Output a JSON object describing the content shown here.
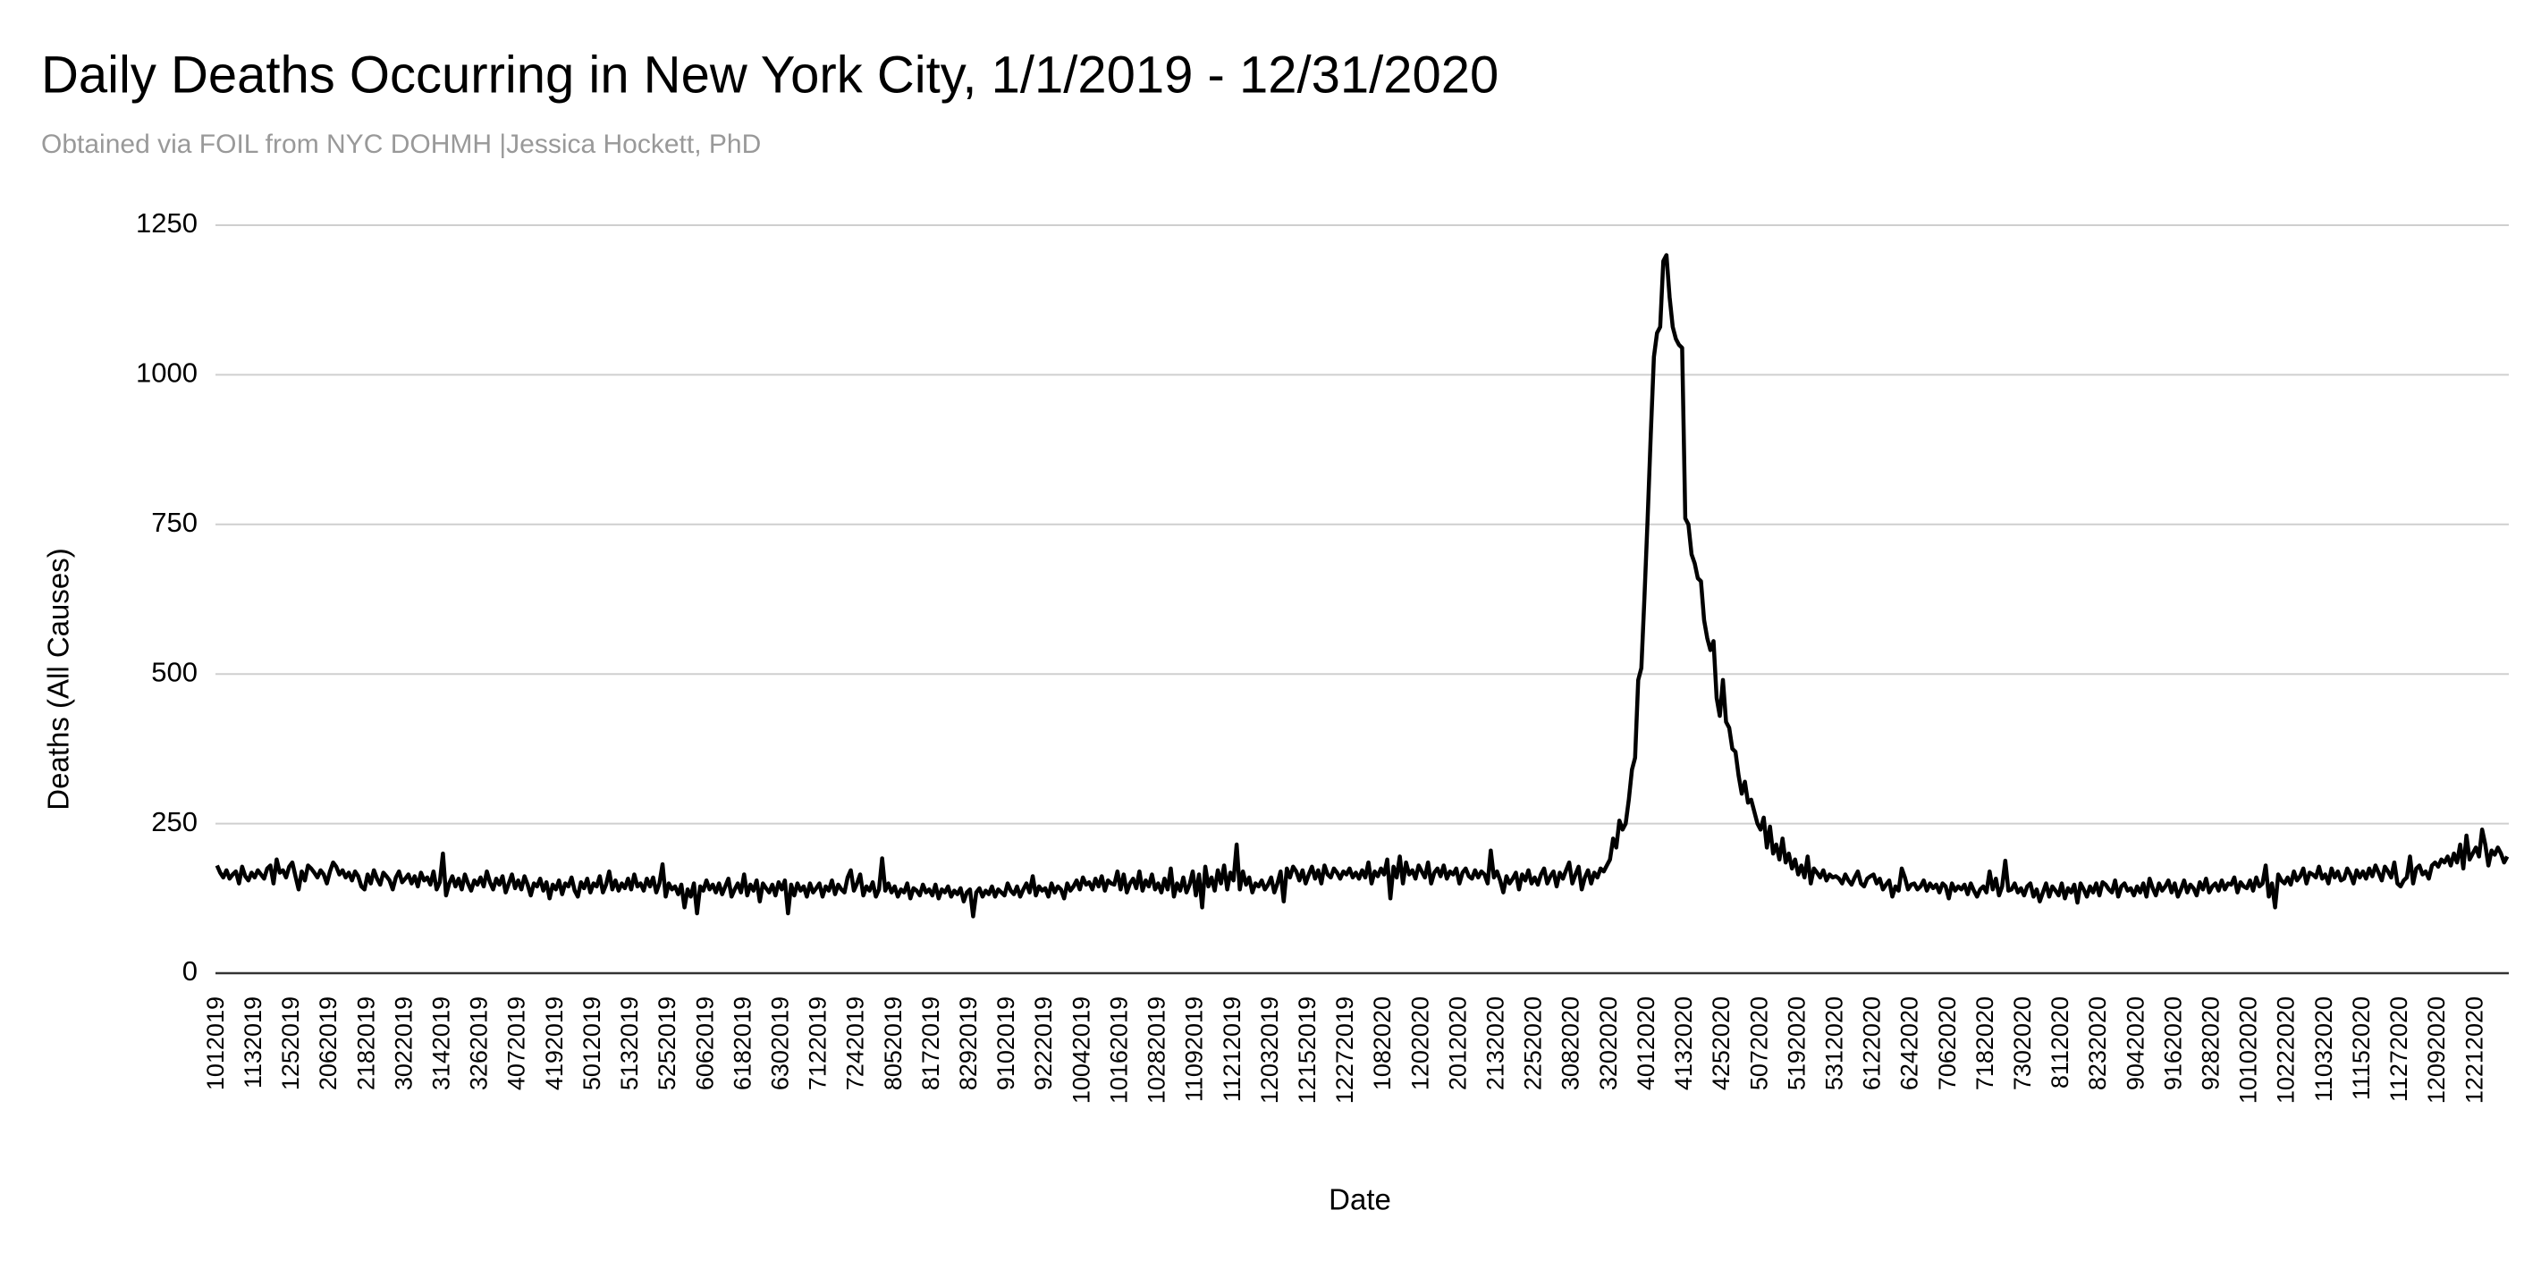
{
  "chart_data": {
    "type": "line",
    "title": "Daily Deaths Occurring in New York City, 1/1/2019 - 12/31/2020",
    "subtitle": "Obtained via FOIL from NYC DOHMH |Jessica Hockett, PhD",
    "x_label": "Date",
    "y_label": "Deaths (All Causes)",
    "color": "#000000",
    "grid": true,
    "ylim": [
      0,
      1250
    ],
    "yticks": [
      0,
      250,
      500,
      750,
      1000,
      1250
    ],
    "categories": [
      "1012019",
      null,
      null,
      null,
      null,
      null,
      null,
      null,
      null,
      null,
      null,
      null,
      "1132019",
      null,
      null,
      null,
      null,
      null,
      null,
      null,
      null,
      null,
      null,
      null,
      "1252019",
      null,
      null,
      null,
      null,
      null,
      null,
      null,
      null,
      null,
      null,
      null,
      "2062019",
      null,
      null,
      null,
      null,
      null,
      null,
      null,
      null,
      null,
      null,
      null,
      "2182019",
      null,
      null,
      null,
      null,
      null,
      null,
      null,
      null,
      null,
      null,
      null,
      "3022019",
      null,
      null,
      null,
      null,
      null,
      null,
      null,
      null,
      null,
      null,
      null,
      "3142019",
      null,
      null,
      null,
      null,
      null,
      null,
      null,
      null,
      null,
      null,
      null,
      "3262019",
      null,
      null,
      null,
      null,
      null,
      null,
      null,
      null,
      null,
      null,
      null,
      "4072019",
      null,
      null,
      null,
      null,
      null,
      null,
      null,
      null,
      null,
      null,
      null,
      "4192019",
      null,
      null,
      null,
      null,
      null,
      null,
      null,
      null,
      null,
      null,
      null,
      "5012019",
      null,
      null,
      null,
      null,
      null,
      null,
      null,
      null,
      null,
      null,
      null,
      "5132019",
      null,
      null,
      null,
      null,
      null,
      null,
      null,
      null,
      null,
      null,
      null,
      "5252019",
      null,
      null,
      null,
      null,
      null,
      null,
      null,
      null,
      null,
      null,
      null,
      "6062019",
      null,
      null,
      null,
      null,
      null,
      null,
      null,
      null,
      null,
      null,
      null,
      "6182019",
      null,
      null,
      null,
      null,
      null,
      null,
      null,
      null,
      null,
      null,
      null,
      "6302019",
      null,
      null,
      null,
      null,
      null,
      null,
      null,
      null,
      null,
      null,
      null,
      "7122019",
      null,
      null,
      null,
      null,
      null,
      null,
      null,
      null,
      null,
      null,
      null,
      "7242019",
      null,
      null,
      null,
      null,
      null,
      null,
      null,
      null,
      null,
      null,
      null,
      "8052019",
      null,
      null,
      null,
      null,
      null,
      null,
      null,
      null,
      null,
      null,
      null,
      "8172019",
      null,
      null,
      null,
      null,
      null,
      null,
      null,
      null,
      null,
      null,
      null,
      "8292019",
      null,
      null,
      null,
      null,
      null,
      null,
      null,
      null,
      null,
      null,
      null,
      "9102019",
      null,
      null,
      null,
      null,
      null,
      null,
      null,
      null,
      null,
      null,
      null,
      "9222019",
      null,
      null,
      null,
      null,
      null,
      null,
      null,
      null,
      null,
      null,
      null,
      "10042019",
      null,
      null,
      null,
      null,
      null,
      null,
      null,
      null,
      null,
      null,
      null,
      "10162019",
      null,
      null,
      null,
      null,
      null,
      null,
      null,
      null,
      null,
      null,
      null,
      "10282019",
      null,
      null,
      null,
      null,
      null,
      null,
      null,
      null,
      null,
      null,
      null,
      "11092019",
      null,
      null,
      null,
      null,
      null,
      null,
      null,
      null,
      null,
      null,
      null,
      "11212019",
      null,
      null,
      null,
      null,
      null,
      null,
      null,
      null,
      null,
      null,
      null,
      "12032019",
      null,
      null,
      null,
      null,
      null,
      null,
      null,
      null,
      null,
      null,
      null,
      "12152019",
      null,
      null,
      null,
      null,
      null,
      null,
      null,
      null,
      null,
      null,
      null,
      "12272019",
      null,
      null,
      null,
      null,
      null,
      null,
      null,
      null,
      null,
      null,
      null,
      "1082020",
      null,
      null,
      null,
      null,
      null,
      null,
      null,
      null,
      null,
      null,
      null,
      "1202020",
      null,
      null,
      null,
      null,
      null,
      null,
      null,
      null,
      null,
      null,
      null,
      "2012020",
      null,
      null,
      null,
      null,
      null,
      null,
      null,
      null,
      null,
      null,
      null,
      "2132020",
      null,
      null,
      null,
      null,
      null,
      null,
      null,
      null,
      null,
      null,
      null,
      "2252020",
      null,
      null,
      null,
      null,
      null,
      null,
      null,
      null,
      null,
      null,
      null,
      "3082020",
      null,
      null,
      null,
      null,
      null,
      null,
      null,
      null,
      null,
      null,
      null,
      "3202020",
      null,
      null,
      null,
      null,
      null,
      null,
      null,
      null,
      null,
      null,
      null,
      "4012020",
      null,
      null,
      null,
      null,
      null,
      null,
      null,
      null,
      null,
      null,
      null,
      "4132020",
      null,
      null,
      null,
      null,
      null,
      null,
      null,
      null,
      null,
      null,
      null,
      "4252020",
      null,
      null,
      null,
      null,
      null,
      null,
      null,
      null,
      null,
      null,
      null,
      "5072020",
      null,
      null,
      null,
      null,
      null,
      null,
      null,
      null,
      null,
      null,
      null,
      "5192020",
      null,
      null,
      null,
      null,
      null,
      null,
      null,
      null,
      null,
      null,
      null,
      "5312020",
      null,
      null,
      null,
      null,
      null,
      null,
      null,
      null,
      null,
      null,
      null,
      "6122020",
      null,
      null,
      null,
      null,
      null,
      null,
      null,
      null,
      null,
      null,
      null,
      "6242020",
      null,
      null,
      null,
      null,
      null,
      null,
      null,
      null,
      null,
      null,
      null,
      "7062020",
      null,
      null,
      null,
      null,
      null,
      null,
      null,
      null,
      null,
      null,
      null,
      "7182020",
      null,
      null,
      null,
      null,
      null,
      null,
      null,
      null,
      null,
      null,
      null,
      "7302020",
      null,
      null,
      null,
      null,
      null,
      null,
      null,
      null,
      null,
      null,
      null,
      "8112020",
      null,
      null,
      null,
      null,
      null,
      null,
      null,
      null,
      null,
      null,
      null,
      "8232020",
      null,
      null,
      null,
      null,
      null,
      null,
      null,
      null,
      null,
      null,
      null,
      "9042020",
      null,
      null,
      null,
      null,
      null,
      null,
      null,
      null,
      null,
      null,
      null,
      "9162020",
      null,
      null,
      null,
      null,
      null,
      null,
      null,
      null,
      null,
      null,
      null,
      "9282020",
      null,
      null,
      null,
      null,
      null,
      null,
      null,
      null,
      null,
      null,
      null,
      "10102020",
      null,
      null,
      null,
      null,
      null,
      null,
      null,
      null,
      null,
      null,
      null,
      "10222020",
      null,
      null,
      null,
      null,
      null,
      null,
      null,
      null,
      null,
      null,
      null,
      "11032020",
      null,
      null,
      null,
      null,
      null,
      null,
      null,
      null,
      null,
      null,
      null,
      "11152020",
      null,
      null,
      null,
      null,
      null,
      null,
      null,
      null,
      null,
      null,
      null,
      "11272020",
      null,
      null,
      null,
      null,
      null,
      null,
      null,
      null,
      null,
      null,
      null,
      "12092020",
      null,
      null,
      null,
      null,
      null,
      null,
      null,
      null,
      null,
      null,
      null,
      "12212020",
      null,
      null,
      null,
      null,
      null,
      null,
      null,
      null,
      null,
      null
    ],
    "values": [
      180,
      168,
      160,
      172,
      158,
      165,
      170,
      150,
      178,
      162,
      155,
      168,
      160,
      172,
      165,
      158,
      175,
      180,
      150,
      190,
      168,
      172,
      160,
      178,
      185,
      162,
      140,
      170,
      155,
      180,
      175,
      168,
      160,
      172,
      165,
      150,
      170,
      185,
      178,
      165,
      172,
      160,
      168,
      155,
      170,
      162,
      145,
      140,
      165,
      150,
      172,
      158,
      148,
      168,
      162,
      155,
      140,
      160,
      170,
      152,
      158,
      165,
      150,
      162,
      145,
      168,
      155,
      160,
      148,
      170,
      140,
      152,
      200,
      130,
      150,
      162,
      145,
      158,
      140,
      165,
      150,
      138,
      155,
      148,
      160,
      145,
      170,
      152,
      140,
      158,
      148,
      162,
      135,
      150,
      165,
      142,
      155,
      140,
      162,
      148,
      130,
      150,
      145,
      158,
      138,
      152,
      125,
      148,
      140,
      155,
      132,
      150,
      145,
      160,
      138,
      128,
      152,
      142,
      158,
      135,
      150,
      145,
      162,
      135,
      148,
      170,
      140,
      155,
      138,
      150,
      142,
      158,
      140,
      165,
      145,
      150,
      138,
      158,
      145,
      160,
      135,
      150,
      182,
      128,
      150,
      140,
      145,
      132,
      148,
      110,
      140,
      128,
      150,
      100,
      145,
      138,
      155,
      140,
      148,
      135,
      150,
      132,
      145,
      158,
      128,
      140,
      150,
      135,
      165,
      130,
      148,
      138,
      155,
      120,
      150,
      142,
      135,
      148,
      130,
      152,
      140,
      155,
      100,
      148,
      130,
      150,
      138,
      145,
      128,
      150,
      135,
      142,
      150,
      128,
      145,
      138,
      155,
      132,
      148,
      140,
      135,
      160,
      172,
      138,
      150,
      165,
      130,
      145,
      138,
      152,
      128,
      140,
      192,
      138,
      150,
      135,
      145,
      128,
      140,
      135,
      150,
      125,
      142,
      138,
      130,
      148,
      135,
      140,
      130,
      148,
      125,
      140,
      135,
      145,
      128,
      138,
      132,
      142,
      120,
      135,
      140,
      95,
      135,
      142,
      128,
      138,
      132,
      145,
      128,
      140,
      135,
      130,
      150,
      138,
      132,
      145,
      128,
      140,
      150,
      135,
      162,
      130,
      145,
      138,
      142,
      128,
      150,
      135,
      145,
      140,
      125,
      150,
      138,
      145,
      155,
      140,
      160,
      148,
      152,
      140,
      158,
      145,
      162,
      138,
      155,
      150,
      148,
      170,
      140,
      165,
      135,
      150,
      158,
      142,
      170,
      138,
      155,
      145,
      165,
      140,
      150,
      135,
      158,
      140,
      175,
      128,
      150,
      138,
      160,
      135,
      148,
      170,
      130,
      165,
      110,
      178,
      145,
      160,
      138,
      172,
      150,
      180,
      140,
      168,
      155,
      215,
      140,
      170,
      148,
      160,
      135,
      150,
      145,
      155,
      140,
      148,
      160,
      135,
      150,
      170,
      120,
      175,
      160,
      178,
      170,
      155,
      172,
      150,
      165,
      178,
      158,
      172,
      150,
      180,
      165,
      160,
      175,
      168,
      158,
      170,
      165,
      175,
      160,
      168,
      158,
      172,
      160,
      185,
      150,
      170,
      162,
      175,
      165,
      190,
      125,
      178,
      160,
      195,
      150,
      185,
      165,
      172,
      158,
      180,
      170,
      160,
      185,
      150,
      168,
      175,
      162,
      180,
      158,
      170,
      165,
      175,
      150,
      168,
      175,
      162,
      158,
      172,
      160,
      170,
      165,
      150,
      205,
      160,
      170,
      155,
      135,
      162,
      150,
      158,
      168,
      140,
      165,
      155,
      172,
      150,
      160,
      148,
      165,
      175,
      150,
      162,
      170,
      145,
      168,
      158,
      172,
      185,
      150,
      165,
      178,
      140,
      160,
      172,
      150,
      168,
      160,
      175,
      170,
      180,
      190,
      225,
      210,
      255,
      240,
      250,
      290,
      340,
      360,
      490,
      510,
      630,
      760,
      900,
      1030,
      1070,
      1080,
      1190,
      1200,
      1130,
      1080,
      1060,
      1050,
      1045,
      760,
      750,
      700,
      685,
      660,
      655,
      590,
      560,
      540,
      555,
      460,
      430,
      490,
      420,
      410,
      375,
      370,
      330,
      300,
      320,
      285,
      290,
      270,
      250,
      240,
      260,
      210,
      245,
      200,
      215,
      190,
      225,
      185,
      200,
      175,
      190,
      165,
      180,
      160,
      195,
      150,
      175,
      168,
      160,
      172,
      155,
      165,
      160,
      162,
      158,
      150,
      165,
      155,
      148,
      160,
      170,
      150,
      145,
      158,
      162,
      165,
      150,
      158,
      140,
      148,
      155,
      128,
      145,
      138,
      175,
      160,
      140,
      148,
      150,
      140,
      145,
      155,
      138,
      150,
      142,
      148,
      135,
      150,
      145,
      125,
      150,
      138,
      145,
      140,
      148,
      132,
      150,
      138,
      128,
      140,
      145,
      135,
      170,
      140,
      158,
      130,
      145,
      188,
      138,
      140,
      150,
      135,
      142,
      130,
      145,
      150,
      128,
      140,
      120,
      135,
      150,
      128,
      145,
      138,
      130,
      150,
      125,
      142,
      135,
      148,
      118,
      150,
      140,
      128,
      145,
      135,
      150,
      130,
      152,
      148,
      140,
      135,
      155,
      128,
      145,
      150,
      138,
      142,
      130,
      145,
      135,
      150,
      128,
      158,
      142,
      130,
      150,
      138,
      145,
      155,
      135,
      150,
      128,
      140,
      155,
      135,
      148,
      142,
      130,
      152,
      140,
      158,
      135,
      145,
      150,
      138,
      155,
      140,
      150,
      148,
      160,
      135,
      152,
      145,
      142,
      155,
      138,
      160,
      145,
      150,
      180,
      128,
      150,
      110,
      165,
      155,
      150,
      160,
      148,
      170,
      155,
      162,
      175,
      150,
      168,
      165,
      160,
      178,
      158,
      165,
      150,
      175,
      160,
      170,
      155,
      158,
      175,
      165,
      150,
      172,
      160,
      170,
      158,
      175,
      162,
      180,
      168,
      155,
      178,
      170,
      160,
      185,
      150,
      145,
      155,
      160,
      195,
      150,
      175,
      180,
      165,
      170,
      158,
      180,
      185,
      178,
      190,
      185,
      195,
      180,
      200,
      185,
      215,
      175,
      230,
      190,
      200,
      210,
      195,
      240,
      215,
      180,
      205,
      198,
      210,
      200,
      185,
      195
    ]
  }
}
